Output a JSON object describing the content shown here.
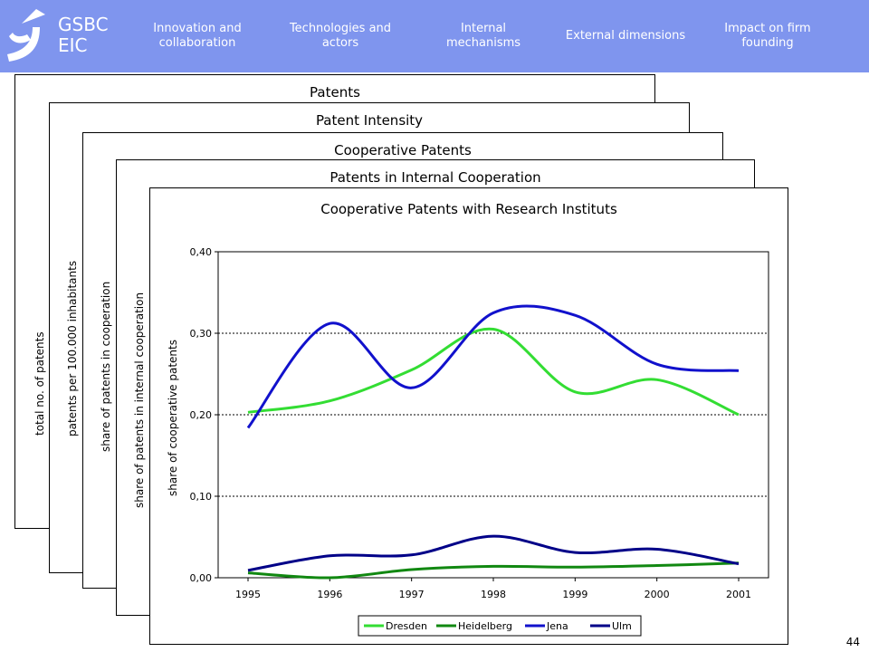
{
  "header": {
    "logo_line1": "GSBC",
    "logo_line2": "EIC",
    "nav": [
      "Innovation and collaboration",
      "Technologies and actors",
      "Internal mechanisms",
      "External dimensions",
      "Impact on firm founding"
    ],
    "background_color": "#7f95ee"
  },
  "stack": [
    {
      "title": "Patents",
      "ylabel": "total no. of patents"
    },
    {
      "title": "Patent Intensity",
      "ylabel": "patents per 100.000 inhabitants"
    },
    {
      "title": "Cooperative Patents",
      "ylabel": "share of patents in cooperation"
    },
    {
      "title": "Patents in Internal Cooperation",
      "ylabel": "share of patents in internal cooperation"
    }
  ],
  "chart_data": {
    "type": "line",
    "title": "Cooperative Patents with Research Instituts",
    "xlabel": "",
    "ylabel": "share of cooperative patents",
    "categories": [
      "1995",
      "1996",
      "1997",
      "1998",
      "1999",
      "2000",
      "2001"
    ],
    "ylim": [
      0,
      0.4
    ],
    "yticks": [
      "0,00",
      "0,10",
      "0,20",
      "0,30",
      "0,40"
    ],
    "grid": "dashed horizontal",
    "legend_position": "bottom",
    "series": [
      {
        "name": "Dresden",
        "color": "#33dd33",
        "values": [
          0.203,
          0.217,
          0.255,
          0.305,
          0.228,
          0.243,
          0.2
        ]
      },
      {
        "name": "Heidelberg",
        "color": "#118811",
        "values": [
          0.006,
          0.0,
          0.01,
          0.014,
          0.013,
          0.015,
          0.018
        ]
      },
      {
        "name": "Jena",
        "color": "#1111cc",
        "values": [
          0.184,
          0.312,
          0.233,
          0.325,
          0.322,
          0.262,
          0.254
        ]
      },
      {
        "name": "Ulm",
        "color": "#000088",
        "values": [
          0.009,
          0.027,
          0.028,
          0.051,
          0.031,
          0.035,
          0.017
        ]
      }
    ]
  },
  "page_number": "44"
}
